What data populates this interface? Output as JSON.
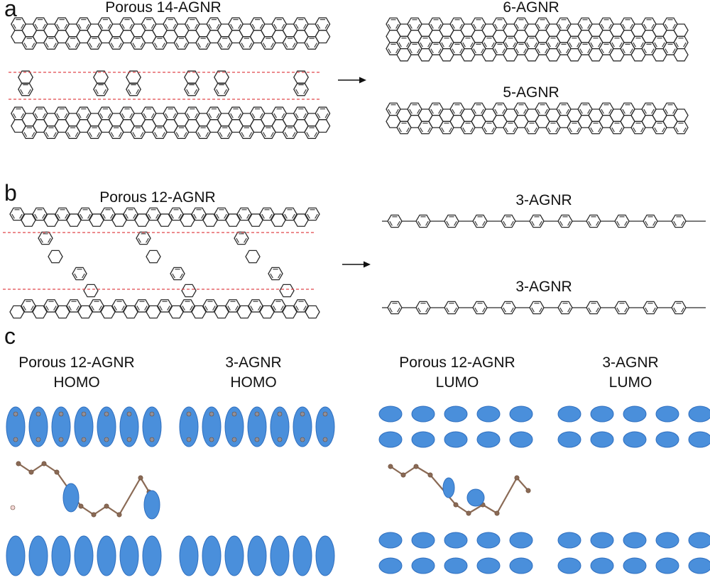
{
  "panels": {
    "a": {
      "letter": "a",
      "left_title": "Porous 14-AGNR",
      "right_top_title": "6-AGNR",
      "right_bottom_title": "5-AGNR"
    },
    "b": {
      "letter": "b",
      "left_title": "Porous 12-AGNR",
      "right_top_title": "3-AGNR",
      "right_bottom_title": "3-AGNR"
    },
    "c": {
      "letter": "c",
      "orbitals": [
        {
          "line1": "Porous 12-AGNR",
          "line2": "HOMO"
        },
        {
          "line1": "3-AGNR",
          "line2": "HOMO"
        },
        {
          "line1": "Porous 12-AGNR",
          "line2": "LUMO"
        },
        {
          "line1": "3-AGNR",
          "line2": "LUMO"
        }
      ]
    }
  },
  "colors": {
    "bond": "#2b2b2b",
    "cut_line": "#e0464b",
    "orbital_fill": "#4a8fdb",
    "orbital_edge": "#2f6fbf",
    "carbon": "#8a6a55",
    "hydrogen": "#f3d7d7"
  }
}
